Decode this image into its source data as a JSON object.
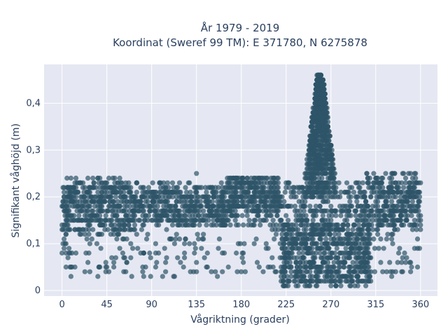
{
  "chart_data": {
    "type": "scatter",
    "title_lines": [
      "År 1979 - 2019",
      "Koordinat (Sweref 99 TM): E 371780, N 6275878"
    ],
    "xlabel": "Vågriktning (grader)",
    "ylabel": "Signifikant våghöjd (m)",
    "xlim": [
      -18,
      377
    ],
    "ylim": [
      -0.012,
      0.483
    ],
    "xticks": [
      0,
      45,
      90,
      135,
      180,
      225,
      270,
      315,
      360
    ],
    "xtick_labels": [
      "0",
      "45",
      "90",
      "135",
      "180",
      "225",
      "270",
      "315",
      "360"
    ],
    "yticks": [
      0,
      0.1,
      0.2,
      0.3,
      0.4
    ],
    "ytick_labels": [
      "0",
      "0,1",
      "0,2",
      "0,3",
      "0,4"
    ],
    "grid": true,
    "marker_color": "#2e5468",
    "plot_background": "#e5e8f2",
    "bands": [
      {
        "x_start": 0,
        "x_end": 360,
        "y_min": 0.14,
        "y_max": 0.23,
        "count": 900
      },
      {
        "x_start": 0,
        "x_end": 70,
        "y_min": 0.12,
        "y_max": 0.24,
        "count": 260
      },
      {
        "x_start": 70,
        "x_end": 165,
        "y_min": 0.14,
        "y_max": 0.21,
        "count": 260
      },
      {
        "x_start": 165,
        "x_end": 220,
        "y_min": 0.17,
        "y_max": 0.245,
        "count": 220
      },
      {
        "x_start": 300,
        "x_end": 360,
        "y_min": 0.13,
        "y_max": 0.25,
        "count": 220
      },
      {
        "x_start": 0,
        "x_end": 360,
        "y_min": 0.03,
        "y_max": 0.14,
        "count": 300
      },
      {
        "x_start": 220,
        "x_end": 310,
        "y_min": 0.01,
        "y_max": 0.14,
        "count": 650
      }
    ],
    "peak": {
      "x_center": 259,
      "y_min": 0.2,
      "y_max": 0.46,
      "width_at_base": 36,
      "count": 900
    },
    "notes_points": [
      {
        "x": 257,
        "y": 0.46
      },
      {
        "x": 260,
        "y": 0.46
      },
      {
        "x": 135,
        "y": 0.25
      }
    ]
  }
}
